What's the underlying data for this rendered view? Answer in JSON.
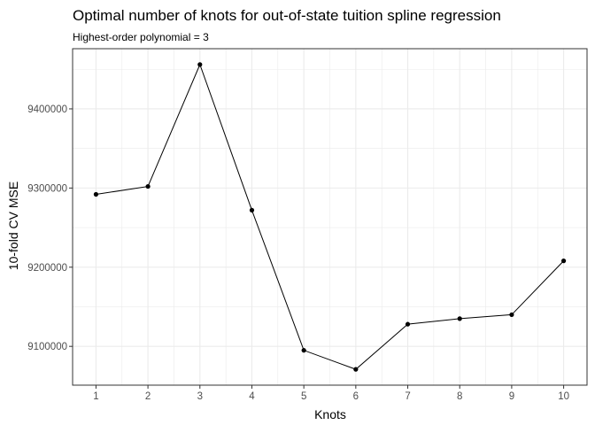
{
  "chart_data": {
    "type": "line",
    "title": "Optimal number of knots for out-of-state tuition spline regression",
    "subtitle": "Highest-order polynomial = 3",
    "xlabel": "Knots",
    "ylabel": "10-fold CV MSE",
    "x": [
      1,
      2,
      3,
      4,
      5,
      6,
      7,
      8,
      9,
      10
    ],
    "y": [
      9292000,
      9302000,
      9456000,
      9272000,
      9095000,
      9071000,
      9128000,
      9135000,
      9140000,
      9208000
    ],
    "x_ticks": [
      "1",
      "2",
      "3",
      "4",
      "5",
      "6",
      "7",
      "8",
      "9",
      "10"
    ],
    "y_ticks": [
      9100000,
      9200000,
      9300000,
      9400000
    ],
    "y_tick_labels": [
      "9100000",
      "9200000",
      "9300000",
      "9400000"
    ],
    "xlim": [
      0.55,
      10.45
    ],
    "ylim": [
      9051000,
      9476000
    ],
    "grid": true,
    "line_color": "#000000",
    "point_color": "#000000",
    "panel_border_color": "#333333",
    "grid_color": "#ebebeb"
  }
}
